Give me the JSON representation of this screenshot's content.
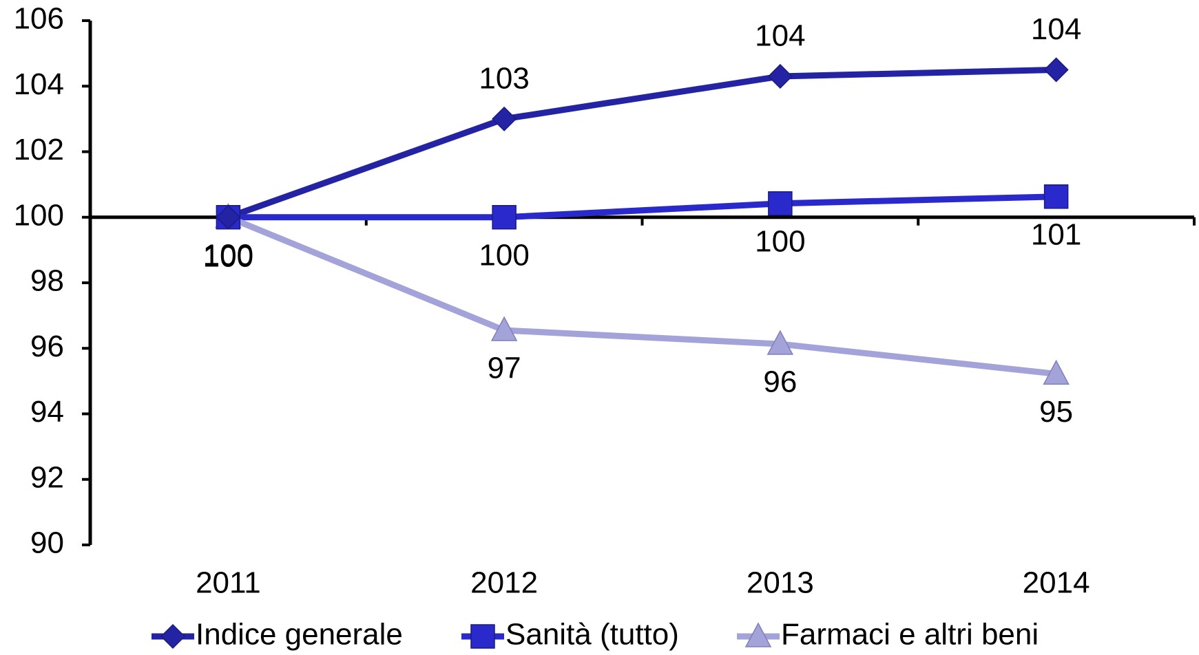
{
  "chart_data": {
    "type": "line",
    "categories": [
      "2011",
      "2012",
      "2013",
      "2014"
    ],
    "series": [
      {
        "name": "Indice generale",
        "color": "#2323a3",
        "marker": "diamond",
        "values": [
          100,
          103.0,
          104.3,
          104.5
        ],
        "value_labels": [
          "100",
          "103",
          "104",
          "104"
        ]
      },
      {
        "name": "Sanità (tutto)",
        "color": "#2a2acc",
        "marker": "square",
        "values": [
          100,
          100,
          100.42,
          100.63
        ],
        "value_labels": [
          "100",
          "100",
          "100",
          "101"
        ]
      },
      {
        "name": "Farmaci e altri beni",
        "color": "#a3a3d9",
        "marker": "triangle",
        "values": [
          100,
          96.55,
          96.13,
          95.22
        ],
        "value_labels": [
          "100",
          "97",
          "96",
          "95"
        ]
      }
    ],
    "ylim": [
      90,
      106
    ],
    "yticks": [
      90,
      92,
      94,
      96,
      98,
      100,
      102,
      104,
      106
    ],
    "xaxis_at": 100,
    "legend": "bottom"
  }
}
